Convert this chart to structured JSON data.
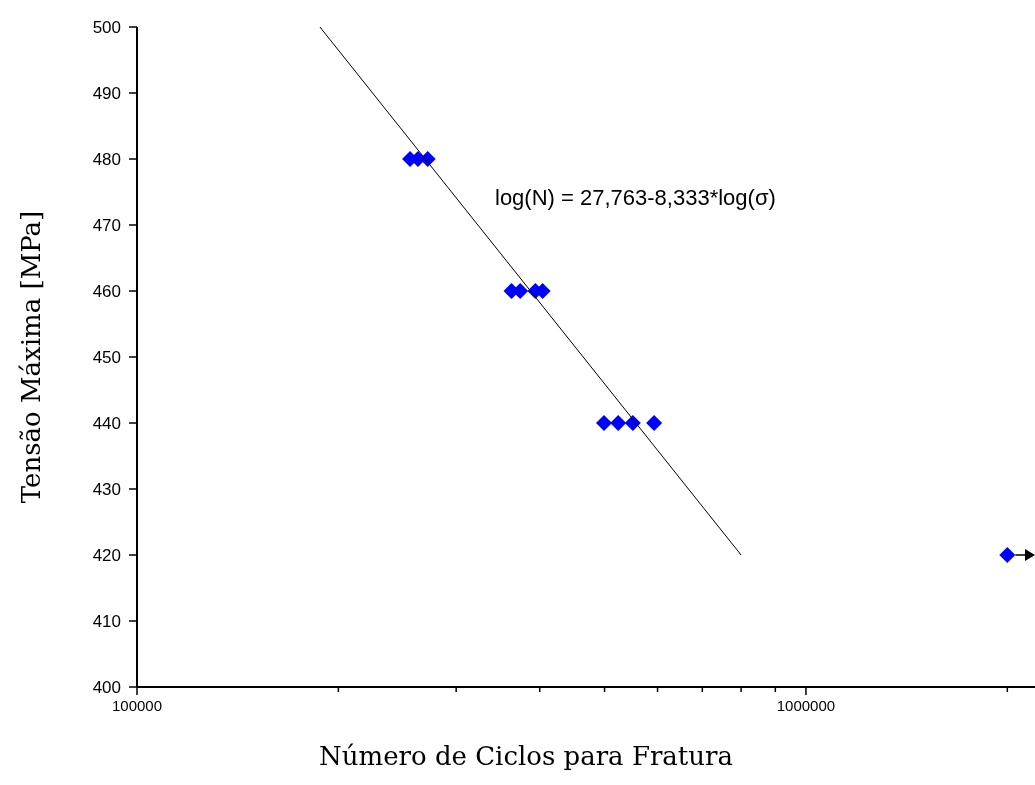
{
  "chart_data": {
    "type": "scatter",
    "xlabel": "Número de Ciclos para Fratura",
    "ylabel": "Tensão Máxima [MPa]",
    "log": "x",
    "xlim": [
      100000,
      2200000
    ],
    "ylim": [
      400,
      500
    ],
    "xticks": [
      100000,
      {
        "value": 200000,
        "label": null
      },
      {
        "value": 300000,
        "label": null
      },
      {
        "value": 400000,
        "label": null
      },
      {
        "value": 500000,
        "label": null
      },
      {
        "value": 600000,
        "label": null
      },
      {
        "value": 700000,
        "label": null
      },
      {
        "value": 800000,
        "label": null
      },
      {
        "value": 900000,
        "label": null
      },
      1000000,
      {
        "value": 2000000,
        "label": null
      }
    ],
    "yticks": [
      400,
      410,
      420,
      430,
      440,
      450,
      460,
      470,
      480,
      490,
      500
    ],
    "grid": false,
    "marker": "diamond",
    "annotations": [
      "log(N) = 27,763-8,333*log(σ)"
    ],
    "series": [
      {
        "color": "#0000ff",
        "x": [
          256000,
          263000,
          272000,
          363000,
          374000,
          394000,
          404000,
          499000,
          524000,
          551000,
          593000,
          2000000
        ],
        "values": [
          480,
          480,
          480,
          460,
          460,
          460,
          460,
          440,
          440,
          440,
          440,
          420
        ]
      },
      {
        "type": "line",
        "color": "#000000",
        "x": [
          187700,
          800000
        ],
        "values": [
          500,
          420
        ],
        "marker": "none",
        "line_style": "solid"
      }
    ]
  }
}
